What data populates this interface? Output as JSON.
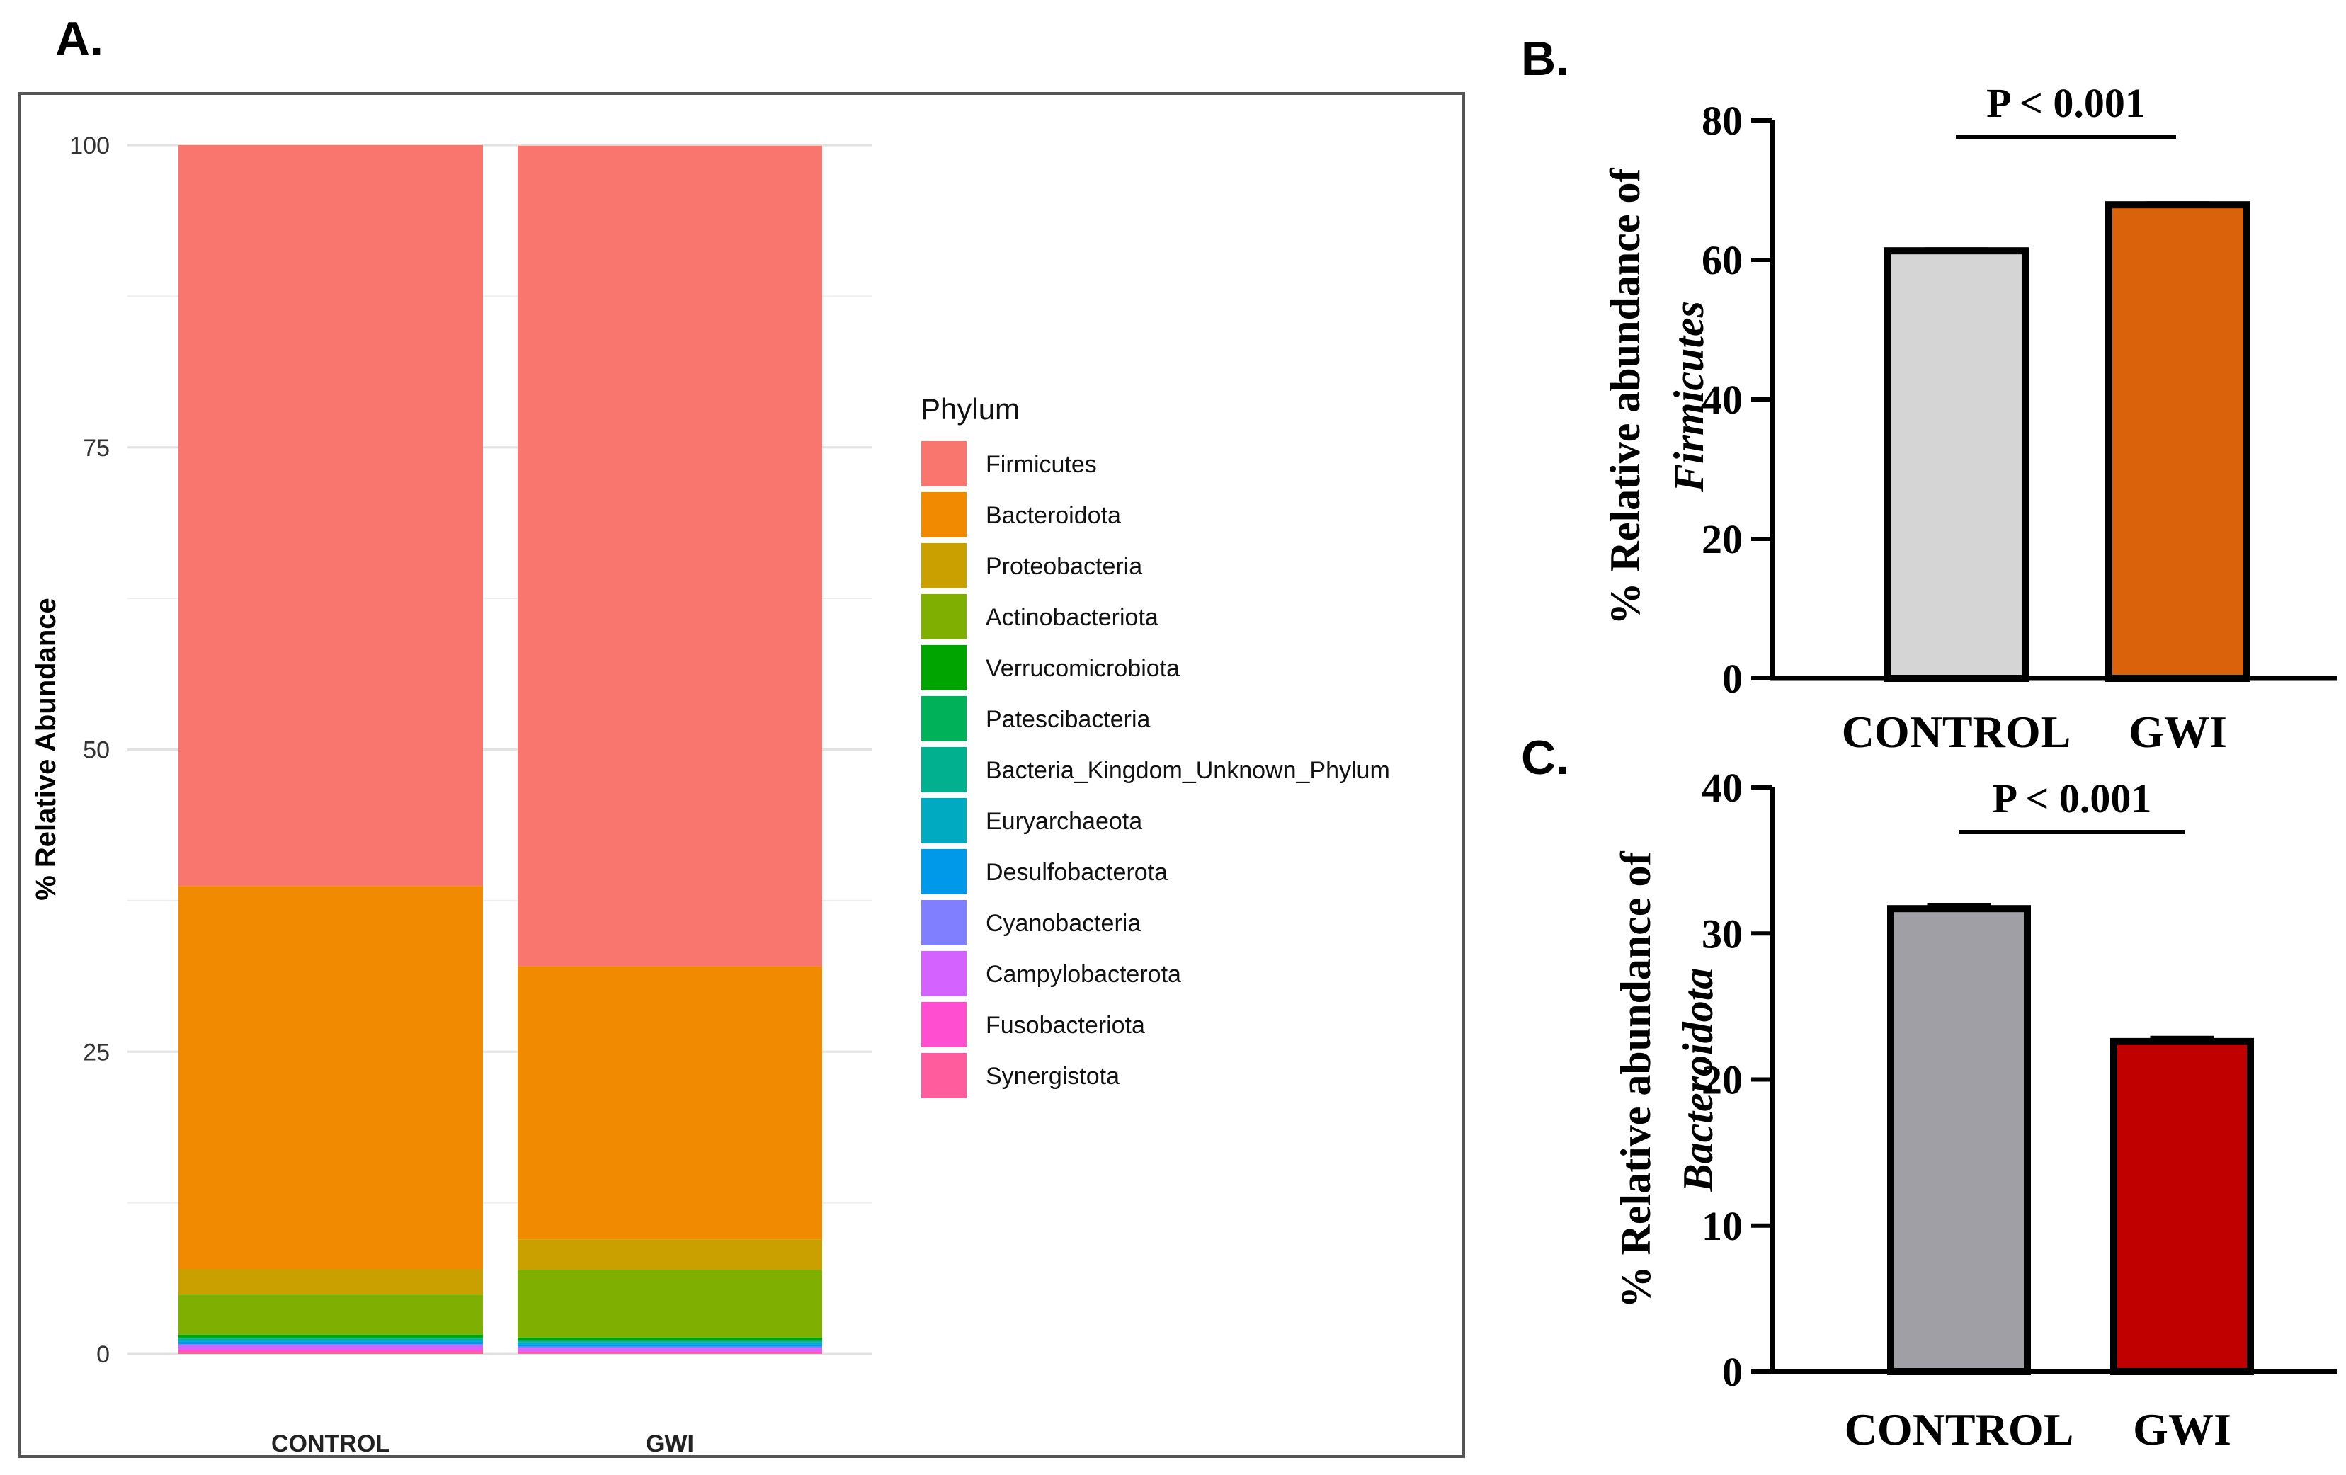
{
  "panels": {
    "a": {
      "label": "A."
    },
    "b": {
      "label": "B."
    },
    "c": {
      "label": "C."
    }
  },
  "chart_data": [
    {
      "type": "bar",
      "stacked": true,
      "panel": "A.",
      "title": "",
      "xlabel": "",
      "ylabel": "% Relative Abundance",
      "ylim": [
        0,
        100
      ],
      "yticks": [
        0,
        25,
        50,
        75,
        100
      ],
      "grid": true,
      "categories": [
        "CONTROL",
        "GWI"
      ],
      "legend": {
        "title": "Phylum",
        "placement": "right"
      },
      "series": [
        {
          "name": "Firmicutes",
          "color": "#F8766D",
          "values": [
            61.3,
            67.9
          ]
        },
        {
          "name": "Bacteroidota",
          "color": "#F28A00",
          "values": [
            31.7,
            22.6
          ]
        },
        {
          "name": "Proteobacteria",
          "color": "#C9A000",
          "values": [
            2.1,
            2.5
          ]
        },
        {
          "name": "Actinobacteriota",
          "color": "#7FAF00",
          "values": [
            3.3,
            5.6
          ]
        },
        {
          "name": "Verrucomicrobiota",
          "color": "#00A400",
          "values": [
            0.25,
            0.2
          ]
        },
        {
          "name": "Patescibacteria",
          "color": "#00B15A",
          "values": [
            0.1,
            0.1
          ]
        },
        {
          "name": "Bacteria_Kingdom_Unknown_Phylum",
          "color": "#00B08F",
          "values": [
            0.1,
            0.1
          ]
        },
        {
          "name": "Euryarchaeota",
          "color": "#00ABC2",
          "values": [
            0.15,
            0.15
          ]
        },
        {
          "name": "Desulfobacterota",
          "color": "#0098E8",
          "values": [
            0.2,
            0.2
          ]
        },
        {
          "name": "Cyanobacteria",
          "color": "#7F7FFF",
          "values": [
            0.15,
            0.15
          ]
        },
        {
          "name": "Campylobacterota",
          "color": "#D462FF",
          "values": [
            0.3,
            0.25
          ]
        },
        {
          "name": "Fusobacteriota",
          "color": "#FF4FD0",
          "values": [
            0.2,
            0.15
          ]
        },
        {
          "name": "Synergistota",
          "color": "#FF5C9E",
          "values": [
            0.15,
            0.05
          ]
        }
      ]
    },
    {
      "type": "bar",
      "panel": "B.",
      "ylabel_line1": "% Relative abundance of",
      "ylabel_line2": "Firmicutes",
      "ylim": [
        0,
        80
      ],
      "yticks": [
        0,
        20,
        40,
        60,
        80
      ],
      "categories": [
        "CONTROL",
        "GWI"
      ],
      "values": [
        61.3,
        67.9
      ],
      "errors": [
        0.3,
        0.3
      ],
      "colors": [
        "#D5D5D5",
        "#D9620B"
      ],
      "annotation": "P < 0.001"
    },
    {
      "type": "bar",
      "panel": "C.",
      "ylabel_line1": "% Relative abundance of",
      "ylabel_line2": "Bacteroidota",
      "ylim": [
        0,
        40
      ],
      "yticks": [
        0,
        10,
        20,
        30,
        40
      ],
      "categories": [
        "CONTROL",
        "GWI"
      ],
      "values": [
        31.7,
        22.6
      ],
      "errors": [
        0.3,
        0.3
      ],
      "colors": [
        "#A09FA6",
        "#C00000"
      ],
      "annotation": "P < 0.001"
    }
  ]
}
